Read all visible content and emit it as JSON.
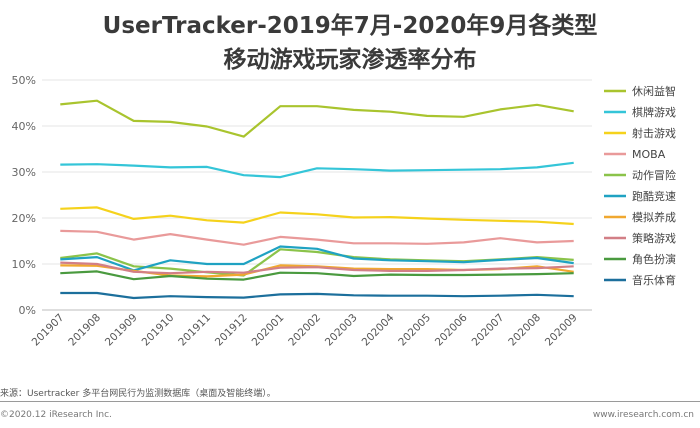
{
  "header": {
    "title_line1": "UserTracker-2019年7月-2020年9月各类型",
    "title_line2": "移动游戏玩家渗透率分布"
  },
  "footer": {
    "source": "来源：Usertracker 多平台网民行为监测数据库（桌面及智能终端）。",
    "copyright": "©2020.12 iResearch Inc.",
    "website": "www.iresearch.com.cn"
  },
  "chart_data": {
    "type": "line",
    "x": [
      "201907",
      "201908",
      "201909",
      "201910",
      "201911",
      "201912",
      "202001",
      "202002",
      "202003",
      "202004",
      "202005",
      "202006",
      "202007",
      "202008",
      "202009"
    ],
    "y_ticks": [
      "0%",
      "10%",
      "20%",
      "30%",
      "40%",
      "50%"
    ],
    "ylim": [
      0,
      50
    ],
    "grid": true,
    "legend_position": "right",
    "series": [
      {
        "name": "休闲益智",
        "color": "#a9c42e",
        "values": [
          44.7,
          45.5,
          41.1,
          40.9,
          39.9,
          37.7,
          44.3,
          44.3,
          43.5,
          43.1,
          42.2,
          42.0,
          43.6,
          44.6,
          43.2
        ]
      },
      {
        "name": "棋牌游戏",
        "color": "#34c5d8",
        "values": [
          31.6,
          31.7,
          31.4,
          31.0,
          31.1,
          29.3,
          28.9,
          30.8,
          30.6,
          30.3,
          30.4,
          30.5,
          30.6,
          31.0,
          32.0
        ]
      },
      {
        "name": "射击游戏",
        "color": "#f5d21c",
        "values": [
          22.0,
          22.3,
          19.8,
          20.5,
          19.5,
          19.0,
          21.2,
          20.8,
          20.1,
          20.2,
          19.9,
          19.6,
          19.4,
          19.2,
          18.7
        ]
      },
      {
        "name": "MOBA",
        "color": "#e99a9a",
        "values": [
          17.2,
          17.0,
          15.3,
          16.5,
          15.3,
          14.2,
          15.9,
          15.3,
          14.5,
          14.5,
          14.4,
          14.7,
          15.6,
          14.7,
          15.0
        ]
      },
      {
        "name": "动作冒险",
        "color": "#8bc34a",
        "values": [
          11.3,
          12.3,
          9.5,
          9.0,
          8.2,
          7.5,
          13.2,
          12.6,
          11.5,
          11.0,
          10.8,
          10.6,
          11.0,
          11.5,
          10.9
        ]
      },
      {
        "name": "跑酷竞速",
        "color": "#1fa2c2",
        "values": [
          11.0,
          11.5,
          8.6,
          10.8,
          10.0,
          10.0,
          13.8,
          13.3,
          11.2,
          10.8,
          10.6,
          10.4,
          10.9,
          11.3,
          10.2
        ]
      },
      {
        "name": "模拟养成",
        "color": "#f0a830",
        "values": [
          9.7,
          9.6,
          8.5,
          7.5,
          7.3,
          7.7,
          9.7,
          9.5,
          9.0,
          8.9,
          8.9,
          8.7,
          8.9,
          9.5,
          8.3
        ]
      },
      {
        "name": "策略游戏",
        "color": "#d27f86",
        "values": [
          10.3,
          10.0,
          8.3,
          8.0,
          8.3,
          8.1,
          9.2,
          9.3,
          8.7,
          8.5,
          8.5,
          8.7,
          9.0,
          9.1,
          9.5
        ]
      },
      {
        "name": "角色扮演",
        "color": "#4a9a3f",
        "values": [
          8.0,
          8.4,
          6.7,
          7.4,
          6.8,
          6.6,
          8.1,
          8.0,
          7.4,
          7.7,
          7.6,
          7.6,
          7.7,
          7.8,
          8.0
        ]
      },
      {
        "name": "音乐体育",
        "color": "#1c6f9c",
        "values": [
          3.7,
          3.7,
          2.6,
          3.0,
          2.8,
          2.7,
          3.4,
          3.5,
          3.2,
          3.1,
          3.1,
          3.0,
          3.1,
          3.3,
          3.0
        ]
      }
    ]
  }
}
